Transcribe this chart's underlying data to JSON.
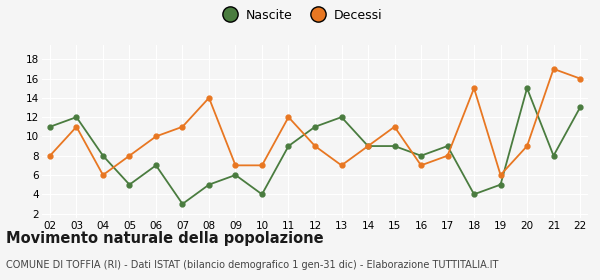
{
  "years": [
    "02",
    "03",
    "04",
    "05",
    "06",
    "07",
    "08",
    "09",
    "10",
    "11",
    "12",
    "13",
    "14",
    "15",
    "16",
    "17",
    "18",
    "19",
    "20",
    "21",
    "22"
  ],
  "nascite": [
    11,
    12,
    8,
    5,
    7,
    3,
    5,
    6,
    4,
    9,
    11,
    12,
    9,
    9,
    8,
    9,
    4,
    5,
    15,
    8,
    13
  ],
  "decessi": [
    8,
    11,
    6,
    8,
    10,
    11,
    14,
    7,
    7,
    12,
    9,
    7,
    9,
    11,
    7,
    8,
    15,
    6,
    9,
    17,
    16
  ],
  "nascite_color": "#4a7c3f",
  "decessi_color": "#e87722",
  "title": "Movimento naturale della popolazione",
  "subtitle": "COMUNE DI TOFFIA (RI) - Dati ISTAT (bilancio demografico 1 gen-31 dic) - Elaborazione TUTTITALIA.IT",
  "legend_labels": [
    "Nascite",
    "Decessi"
  ],
  "yticks": [
    2,
    4,
    6,
    8,
    10,
    12,
    14,
    16,
    18
  ],
  "ylim": [
    1.5,
    19.5
  ],
  "background_color": "#f5f5f5",
  "grid_color": "#ffffff",
  "title_fontsize": 10.5,
  "subtitle_fontsize": 7.0,
  "legend_fontsize": 9,
  "tick_fontsize": 7.5
}
